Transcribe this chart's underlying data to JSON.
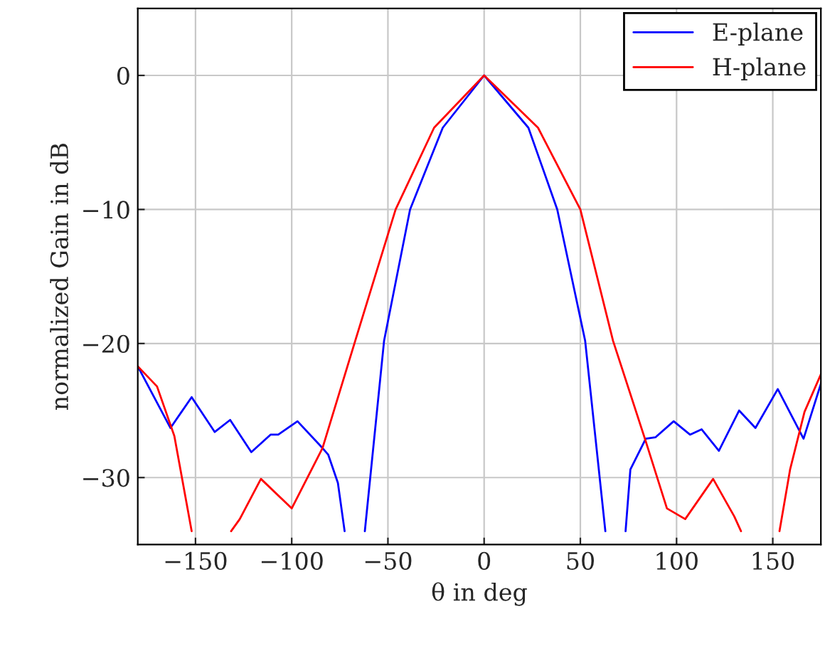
{
  "chart_data": {
    "type": "line",
    "xlabel": "θ in deg",
    "ylabel": "normalized Gain in dB",
    "xlim": [
      -180,
      175
    ],
    "ylim": [
      -35,
      5
    ],
    "xticks": [
      {
        "value": -150,
        "label": "−150"
      },
      {
        "value": -100,
        "label": "−100"
      },
      {
        "value": -50,
        "label": "−50"
      },
      0,
      50,
      100,
      150
    ],
    "yticks": [
      {
        "value": -30,
        "label": "−30"
      },
      {
        "value": -20,
        "label": "−20"
      },
      {
        "value": -10,
        "label": "−10"
      },
      0
    ],
    "grid": true,
    "legend": "top right",
    "marker": "none",
    "line_style": "solid",
    "series": [
      {
        "name": "E-plane",
        "color": "#0000ff",
        "x": [
          -180,
          -163,
          -152,
          -140,
          -132,
          -121,
          -111,
          -107,
          -97,
          -84,
          -81,
          -76,
          -72.5,
          null,
          -62,
          -52,
          -38.5,
          -21.5,
          0,
          23,
          38,
          52.5,
          63,
          null,
          73.5,
          76,
          84,
          89,
          98.5,
          107,
          113,
          122,
          132.5,
          141,
          152.6,
          166,
          175
        ],
        "values": [
          -21.7,
          -26.3,
          -24.0,
          -26.6,
          -25.7,
          -28.1,
          -26.8,
          -26.8,
          -25.8,
          -27.8,
          -28.3,
          -30.4,
          -34,
          null,
          -34,
          -19.8,
          -10,
          -3.9,
          0,
          -3.9,
          -10,
          -19.8,
          -34,
          null,
          -34,
          -29.4,
          -27.1,
          -27,
          -25.8,
          -26.8,
          -26.4,
          -28,
          -25,
          -26.3,
          -23.4,
          -27.1,
          -23
        ]
      },
      {
        "name": "H-plane",
        "color": "#ff0000",
        "x": [
          -180,
          -170,
          -161,
          -152,
          null,
          -131.5,
          -127,
          -116,
          -100,
          -84,
          -67,
          -46,
          -26,
          0,
          28,
          50,
          67,
          84,
          95,
          104.5,
          119,
          130,
          133.5,
          null,
          153.5,
          159,
          166.5,
          175
        ],
        "values": [
          -21.7,
          -23.2,
          -26.9,
          -34,
          null,
          -34,
          -33.1,
          -30.1,
          -32.3,
          -27.8,
          -19.8,
          -10,
          -3.9,
          0,
          -3.9,
          -10,
          -19.8,
          -27.3,
          -32.3,
          -33.1,
          -30.1,
          -32.9,
          -34,
          null,
          -34,
          -29.4,
          -25.1,
          -22.3
        ]
      }
    ]
  }
}
